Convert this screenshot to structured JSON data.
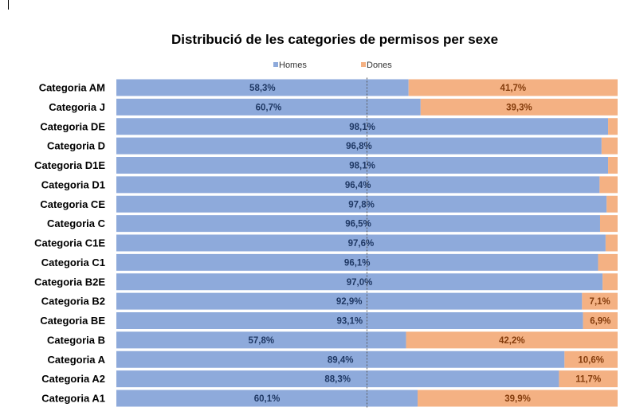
{
  "chart_data": {
    "type": "bar",
    "orientation": "horizontal",
    "stacked": "percent",
    "title": "Distribució de les categories de permisos per sexe",
    "legend": {
      "position": "top",
      "entries": [
        "Homes",
        "Dones"
      ]
    },
    "categories": [
      "Categoria AM",
      "Categoria J",
      "Categoria DE",
      "Categoria D",
      "Categoria D1E",
      "Categoria D1",
      "Categoria CE",
      "Categoria C",
      "Categoria C1E",
      "Categoria C1",
      "Categoria B2E",
      "Categoria B2",
      "Categoria BE",
      "Categoria B",
      "Categoria A",
      "Categoria A2",
      "Categoria A1"
    ],
    "series": [
      {
        "name": "Homes",
        "color": "#8eaadb",
        "label_color": "#1f3864",
        "values": [
          58.3,
          60.7,
          98.1,
          96.8,
          98.1,
          96.4,
          97.8,
          96.5,
          97.6,
          96.1,
          97.0,
          92.9,
          93.1,
          57.8,
          89.4,
          88.3,
          60.1
        ],
        "labels": [
          "58,3%",
          "60,7%",
          "98,1%",
          "96,8%",
          "98,1%",
          "96,4%",
          "97,8%",
          "96,5%",
          "97,6%",
          "96,1%",
          "97,0%",
          "92,9%",
          "93,1%",
          "57,8%",
          "89,4%",
          "88,3%",
          "60,1%"
        ]
      },
      {
        "name": "Dones",
        "color": "#f4b183",
        "label_color": "#843c0c",
        "values": [
          41.7,
          39.3,
          1.9,
          3.2,
          1.9,
          3.6,
          2.2,
          3.5,
          2.4,
          3.9,
          3.0,
          7.1,
          6.9,
          42.2,
          10.6,
          11.7,
          39.9
        ],
        "labels": [
          "41,7%",
          "39,3%",
          "",
          "",
          "",
          "",
          "",
          "",
          "",
          "",
          "",
          "7,1%",
          "6,9%",
          "42,2%",
          "10,6%",
          "11,7%",
          "39,9%"
        ]
      }
    ],
    "xlim": [
      0,
      100
    ],
    "reference_line": 50,
    "grid": false
  }
}
